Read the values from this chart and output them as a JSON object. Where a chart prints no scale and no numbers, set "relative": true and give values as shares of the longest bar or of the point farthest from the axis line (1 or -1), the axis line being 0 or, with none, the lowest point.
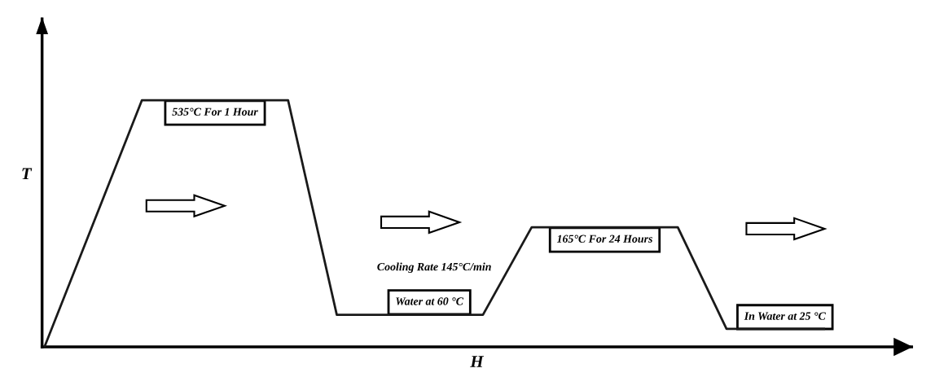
{
  "chart_data": {
    "type": "line",
    "relative": true,
    "xlabel": "H",
    "ylabel": "T",
    "categories": [
      null,
      null,
      null,
      null,
      null,
      null,
      null,
      null,
      null,
      null,
      null,
      null,
      null,
      null,
      null,
      null,
      null
    ],
    "series": [
      {
        "color": "#1a1a1a",
        "values": [
          0,
          0.5,
          1.0,
          1.0,
          1.0,
          1.0,
          0.13,
          0.13,
          0.13,
          0.13,
          0.485,
          0.485,
          0.485,
          0.485,
          0.073,
          0.073,
          0.073
        ]
      }
    ],
    "annotations": [
      "535°C For 1 Hour",
      "Cooling Rate 145°C/min",
      "Water at 60 °C",
      "165°C For 24 Hours",
      "In Water at 25 °C"
    ],
    "grid": false,
    "marker": "none",
    "line_style": "solid"
  }
}
